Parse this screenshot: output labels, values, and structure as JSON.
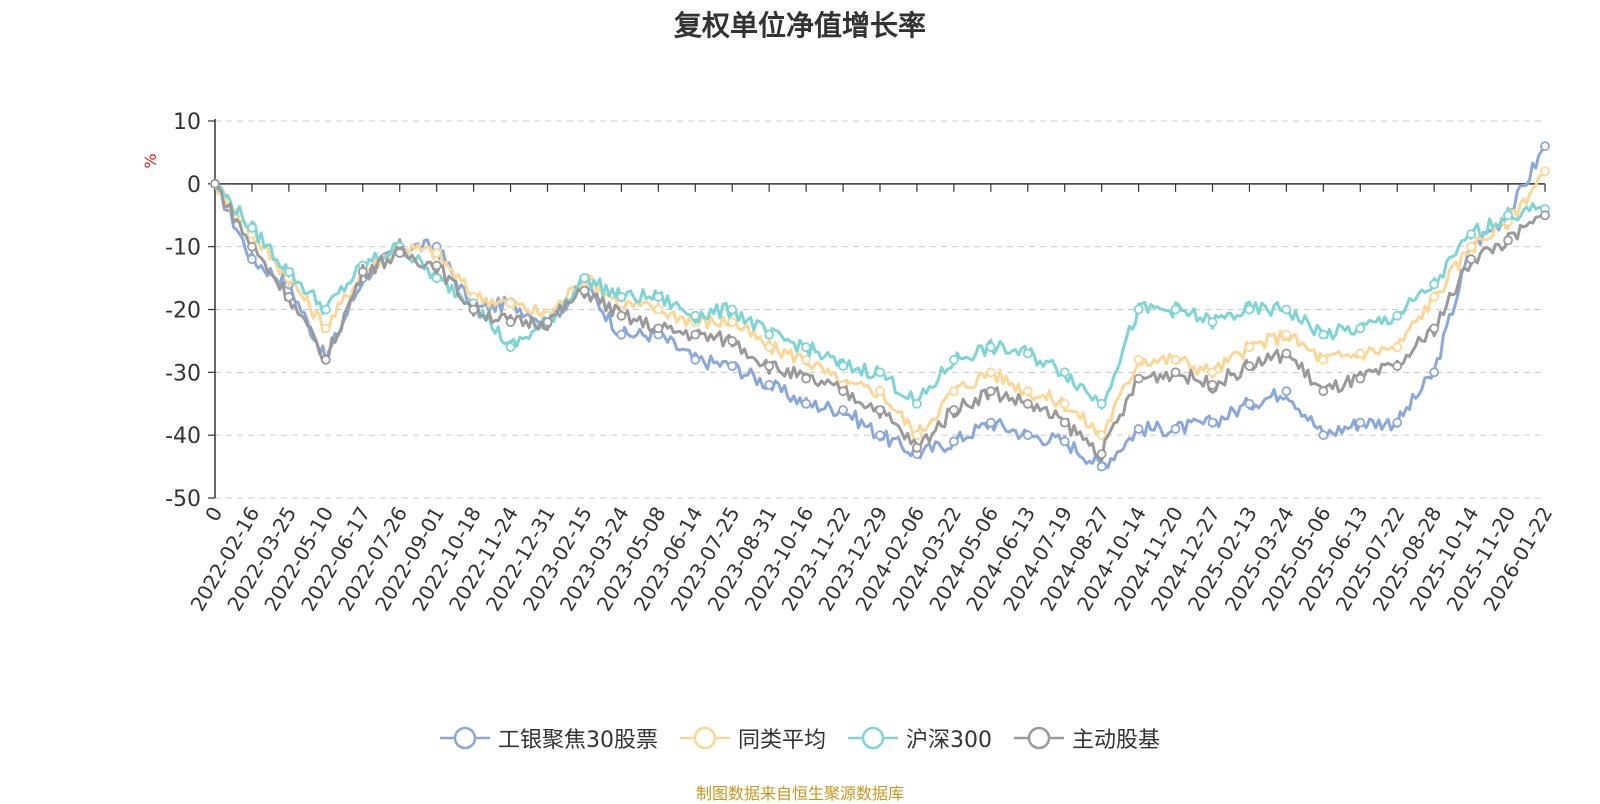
{
  "chart_data": {
    "type": "line",
    "title": "复权单位净值增长率",
    "ylabel": "%",
    "xlabel": "",
    "ylim": [
      -50,
      10
    ],
    "yticks": [
      "10",
      "0",
      "-10",
      "-20",
      "-30",
      "-40",
      "-50"
    ],
    "ytick_values": [
      10,
      0,
      -10,
      -20,
      -30,
      -40,
      -50
    ],
    "grid": true,
    "legend_position": "bottom",
    "categories": [
      "0",
      "2022-02-16",
      "2022-03-25",
      "2022-05-10",
      "2022-06-17",
      "2022-07-26",
      "2022-09-01",
      "2022-10-18",
      "2022-11-24",
      "2022-12-31",
      "2023-02-15",
      "2023-03-24",
      "2023-05-08",
      "2023-06-14",
      "2023-07-25",
      "2023-08-31",
      "2023-10-16",
      "2023-11-22",
      "2023-12-29",
      "2024-02-06",
      "2024-03-22",
      "2024-05-06",
      "2024-06-13",
      "2024-07-19",
      "2024-08-27",
      "2024-10-14",
      "2024-11-20",
      "2024-12-27",
      "2025-02-13",
      "2025-03-24",
      "2025-05-06",
      "2025-06-13",
      "2025-07-22",
      "2025-08-28",
      "2025-10-14",
      "2025-11-20",
      "2026-01-22"
    ],
    "series": [
      {
        "name": "工银聚焦30股票",
        "color": "#8aa8d8",
        "values": [
          0,
          -12,
          -16,
          -28,
          -15,
          -10,
          -10,
          -20,
          -19,
          -22,
          -16,
          -24,
          -24,
          -28,
          -29,
          -32,
          -35,
          -36,
          -40,
          -43,
          -41,
          -38,
          -40,
          -41,
          -45,
          -39,
          -39,
          -38,
          -35,
          -33,
          -40,
          -38,
          -38,
          -30,
          -10,
          -5,
          6
        ]
      },
      {
        "name": "同类平均",
        "color": "#fad797",
        "values": [
          0,
          -8,
          -15,
          -23,
          -14,
          -10,
          -11,
          -18,
          -19,
          -21,
          -15,
          -19,
          -20,
          -22,
          -22,
          -26,
          -28,
          -32,
          -33,
          -40,
          -33,
          -30,
          -33,
          -35,
          -40,
          -28,
          -28,
          -30,
          -26,
          -24,
          -28,
          -27,
          -26,
          -18,
          -10,
          -6,
          2
        ]
      },
      {
        "name": "沪深300",
        "color": "#7fd4d4",
        "values": [
          0,
          -7,
          -14,
          -20,
          -13,
          -10,
          -15,
          -19,
          -26,
          -22,
          -15,
          -18,
          -18,
          -21,
          -20,
          -24,
          -26,
          -29,
          -30,
          -35,
          -28,
          -26,
          -27,
          -30,
          -35,
          -20,
          -20,
          -22,
          -20,
          -20,
          -24,
          -23,
          -21,
          -16,
          -8,
          -5,
          -4
        ]
      },
      {
        "name": "主动股基",
        "color": "#9a9a9a",
        "values": [
          0,
          -10,
          -18,
          -28,
          -14,
          -11,
          -13,
          -20,
          -22,
          -22,
          -17,
          -21,
          -23,
          -24,
          -25,
          -29,
          -31,
          -33,
          -36,
          -42,
          -36,
          -33,
          -35,
          -38,
          -43,
          -31,
          -30,
          -32,
          -29,
          -27,
          -33,
          -31,
          -29,
          -23,
          -12,
          -9,
          -5
        ]
      }
    ]
  },
  "source_note": "制图数据来自恒生聚源数据库"
}
